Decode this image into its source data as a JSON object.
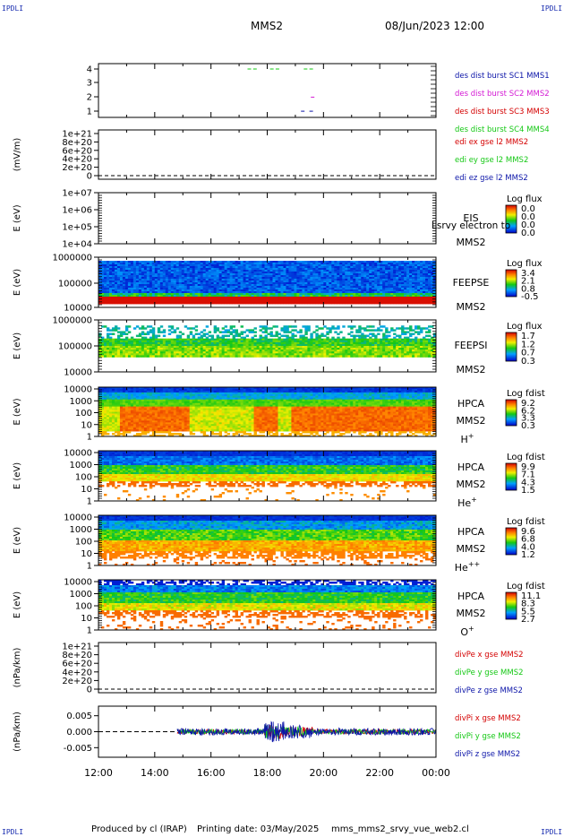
{
  "header": {
    "corner_tl": "IPDLI",
    "corner_tr": "IPDLI",
    "corner_bl": "IPDLI",
    "corner_br": "IPDLI",
    "spacecraft": "MMS2",
    "datetime": "08/Jun/2023 12:00"
  },
  "footer": {
    "produced_by": "Produced by cl (IRAP)",
    "printing_date": "Printing date: 03/May/2025",
    "file": "mms_mms2_srvy_vue_web2.cl"
  },
  "x_axis": {
    "ticks": [
      "12:00",
      "14:00",
      "16:00",
      "18:00",
      "20:00",
      "22:00",
      "00:00"
    ]
  },
  "colors": {
    "blue": "#0b14a8",
    "magenta": "#d41ad4",
    "red": "#d40000",
    "green": "#14c814"
  },
  "chart_data": [
    {
      "type": "scatter",
      "panel": "burst",
      "ylim": [
        0.5,
        4.5
      ],
      "yticks": [
        "4",
        "3",
        "2",
        "1"
      ],
      "legend": [
        "des dist burst SC1 MMS1",
        "des dist burst SC2 MMS2",
        "des dist burst SC3 MMS3",
        "des dist burst SC4 MMS4"
      ],
      "series": [
        {
          "name": "des dist burst SC4 MMS4",
          "color": "#14c814",
          "x_hours": [
            17.3,
            17.5,
            18.1,
            18.3,
            19.3,
            19.5
          ],
          "y": [
            4,
            4,
            4,
            4,
            4,
            4
          ]
        },
        {
          "name": "des dist burst SC1 MMS1",
          "color": "#0b14a8",
          "x_hours": [
            19.2,
            19.5
          ],
          "y": [
            1,
            1
          ]
        },
        {
          "name": "des dist burst SC2 MMS2",
          "color": "#d41ad4",
          "x_hours": [
            19.55
          ],
          "y": [
            2
          ]
        }
      ]
    },
    {
      "type": "line",
      "panel": "edi",
      "ylabel": "(mV/m)",
      "yticks": [
        "1e+21",
        "8e+20",
        "6e+20",
        "4e+20",
        "2e+20",
        "0"
      ],
      "legend": [
        "edi ex gse l2 MMS2",
        "edi ey gse l2 MMS2",
        "edi ez gse l2 MMS2"
      ],
      "series": []
    },
    {
      "type": "heatmap",
      "panel": "eis",
      "ylabel": "E (eV)",
      "yticks": [
        "1e+07",
        "1e+06",
        "1e+05",
        "1e+04"
      ],
      "scale": "log",
      "instrument": "EIS",
      "sc": "MMS2",
      "overlay": "Lsrvy electron to",
      "colorbar_title": "Log flux",
      "colorbar_ticks": [
        "0.0",
        "0.0",
        "0.0",
        "0.0"
      ]
    },
    {
      "type": "heatmap",
      "panel": "feeps_e",
      "ylabel": "E (eV)",
      "yticks": [
        "1000000",
        "100000",
        "10000"
      ],
      "scale": "log",
      "instrument": "FEEPSE",
      "sc": "MMS2",
      "colorbar_title": "Log flux",
      "colorbar_ticks": [
        "3.4",
        "2.1",
        "0.8",
        "-0.5"
      ]
    },
    {
      "type": "heatmap",
      "panel": "feeps_i",
      "ylabel": "E (eV)",
      "yticks": [
        "1000000",
        "100000",
        "10000"
      ],
      "scale": "log",
      "instrument": "FEEPSI",
      "sc": "MMS2",
      "colorbar_title": "Log flux",
      "colorbar_ticks": [
        "1.7",
        "1.2",
        "0.7",
        "0.3"
      ]
    },
    {
      "type": "heatmap",
      "panel": "hpca_h",
      "ylabel": "E (eV)",
      "yticks": [
        "10000",
        "1000",
        "100",
        "10",
        "1"
      ],
      "scale": "log",
      "instrument": "HPCA",
      "sc": "MMS2",
      "species": "H",
      "charge": "+",
      "colorbar_title": "Log fdist",
      "colorbar_ticks": [
        "9.2",
        "6.2",
        "3.3",
        "0.3"
      ]
    },
    {
      "type": "heatmap",
      "panel": "hpca_he1",
      "ylabel": "E (eV)",
      "yticks": [
        "10000",
        "1000",
        "100",
        "10",
        "1"
      ],
      "scale": "log",
      "instrument": "HPCA",
      "sc": "MMS2",
      "species": "He",
      "charge": "+",
      "colorbar_title": "Log fdist",
      "colorbar_ticks": [
        "9.9",
        "7.1",
        "4.3",
        "1.5"
      ]
    },
    {
      "type": "heatmap",
      "panel": "hpca_he2",
      "ylabel": "E (eV)",
      "yticks": [
        "10000",
        "1000",
        "100",
        "10",
        "1"
      ],
      "scale": "log",
      "instrument": "HPCA",
      "sc": "MMS2",
      "species": "He",
      "charge": "++",
      "colorbar_title": "Log fdist",
      "colorbar_ticks": [
        "9.6",
        "6.8",
        "4.0",
        "1.2"
      ]
    },
    {
      "type": "heatmap",
      "panel": "hpca_o",
      "ylabel": "E (eV)",
      "yticks": [
        "10000",
        "1000",
        "100",
        "10",
        "1"
      ],
      "scale": "log",
      "instrument": "HPCA",
      "sc": "MMS2",
      "species": "O",
      "charge": "+",
      "colorbar_title": "Log fdist",
      "colorbar_ticks": [
        "11.1",
        "8.3",
        "5.5",
        "2.7"
      ]
    },
    {
      "type": "line",
      "panel": "divpe",
      "ylabel": "(nPa/km)",
      "yticks": [
        "1e+21",
        "8e+20",
        "6e+20",
        "4e+20",
        "2e+20",
        "0"
      ],
      "legend": [
        "divPe x gse MMS2",
        "divPe y gse MMS2",
        "divPe z gse MMS2"
      ],
      "series": []
    },
    {
      "type": "line",
      "panel": "divpi",
      "ylabel": "(nPa/km)",
      "yticks": [
        "0.005",
        "0.000",
        "-0.005"
      ],
      "ylim": [
        -0.008,
        0.008
      ],
      "legend": [
        "divPi x gse MMS2",
        "divPi y gse MMS2",
        "divPi z gse MMS2"
      ],
      "series": [
        {
          "name": "divPi x gse MMS2",
          "color": "#d40000",
          "data_start_hour": 14.8,
          "data_end_hour": 24.0
        },
        {
          "name": "divPi y gse MMS2",
          "color": "#14c814",
          "data_start_hour": 14.8,
          "data_end_hour": 24.0
        },
        {
          "name": "divPi z gse MMS2",
          "color": "#0b14a8",
          "data_start_hour": 14.8,
          "data_end_hour": 24.0
        }
      ]
    }
  ]
}
